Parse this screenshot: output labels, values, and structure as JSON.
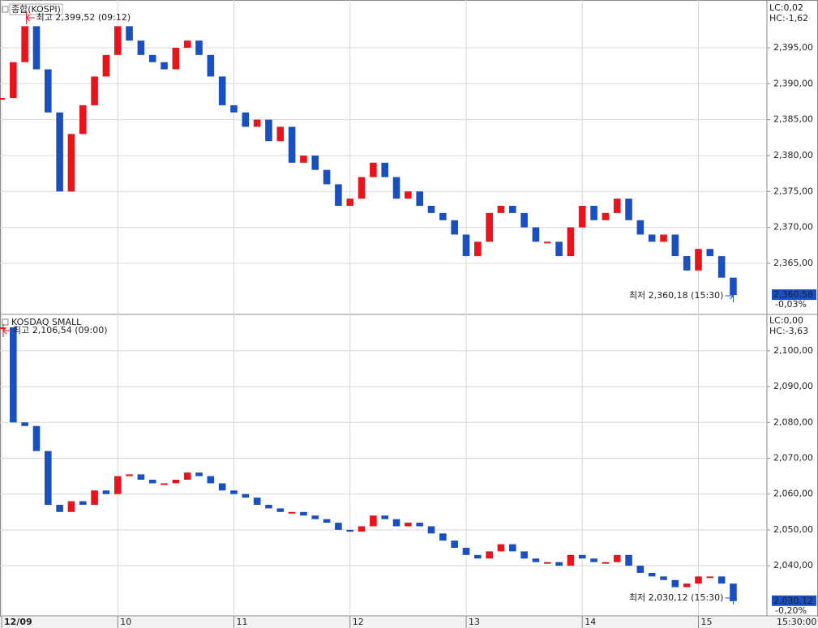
{
  "chart_data": [
    {
      "type": "stock",
      "title": "종합(KOSPI)",
      "high_label": "최고 2,399,52 (09:12)",
      "low_label": "최저 2,360,18 (15:30)",
      "lc_label": "LC:0,02",
      "hc_label": "HC:-1,62",
      "last_label": "2,360,58",
      "change_label": "-0,03%",
      "up_color": "#e8141c",
      "down_color": "#1a4fbf",
      "xlim": [
        0,
        6.59
      ],
      "xticks": [
        0,
        1,
        2,
        3,
        4,
        5,
        6
      ],
      "ylim": [
        2358.0,
        2401.2
      ],
      "yticks": [
        {
          "value": 2365,
          "label": "2,365,00"
        },
        {
          "value": 2370,
          "label": "2,370,00"
        },
        {
          "value": 2375,
          "label": "2,375,00"
        },
        {
          "value": 2380,
          "label": "2,380,00"
        },
        {
          "value": 2385,
          "label": "2,385,00"
        },
        {
          "value": 2390,
          "label": "2,390,00"
        },
        {
          "value": 2395,
          "label": "2,395,00"
        }
      ],
      "grid": true,
      "x": [
        0,
        0.1,
        0.2,
        0.3,
        0.4,
        0.5,
        0.6,
        0.7,
        0.8,
        0.9,
        1,
        1.1,
        1.2,
        1.3,
        1.4,
        1.5,
        1.6,
        1.7,
        1.8,
        1.9,
        2,
        2.1,
        2.2,
        2.3,
        2.4,
        2.5,
        2.6,
        2.7,
        2.8,
        2.9,
        3,
        3.1,
        3.2,
        3.3,
        3.4,
        3.5,
        3.6,
        3.7,
        3.8,
        3.9,
        4,
        4.1,
        4.2,
        4.3,
        4.4,
        4.5,
        4.6,
        4.7,
        4.8,
        4.9,
        5,
        5.1,
        5.2,
        5.3,
        5.4,
        5.5,
        5.6,
        5.7,
        5.8,
        5.9,
        6,
        6.1,
        6.2,
        6.3
      ],
      "values": [
        2388,
        2393,
        2398,
        2392,
        2386,
        2375,
        2383,
        2387,
        2391,
        2394,
        2398,
        2396,
        2394,
        2393,
        2392,
        2395,
        2396,
        2394,
        2391,
        2387,
        2386,
        2384,
        2385,
        2382,
        2384,
        2379,
        2380,
        2378,
        2376,
        2373,
        2374,
        2377,
        2379,
        2377,
        2374,
        2375,
        2373,
        2372,
        2371,
        2369,
        2366,
        2368,
        2372,
        2373,
        2372,
        2370,
        2368,
        2368,
        2366,
        2370,
        2373,
        2371,
        2372,
        2374,
        2371,
        2369,
        2368,
        2369,
        2366,
        2364,
        2367,
        2366,
        2363,
        2360.58
      ]
    },
    {
      "type": "stock",
      "title": "KOSDAQ SMALL",
      "high_label": "최고 2,106,54 (09:00)",
      "low_label": "최저 2,030,12 (15:30)",
      "lc_label": "LC:0,00",
      "hc_label": "HC:-3,63",
      "last_label": "2,030,12",
      "change_label": "-0,20%",
      "up_color": "#e8141c",
      "down_color": "#1a4fbf",
      "xlim": [
        0,
        6.59
      ],
      "xticks": [
        {
          "value": 0,
          "label": "12/09"
        },
        {
          "value": 1,
          "label": "10"
        },
        {
          "value": 2,
          "label": "11"
        },
        {
          "value": 3,
          "label": "12"
        },
        {
          "value": 4,
          "label": "13"
        },
        {
          "value": 5,
          "label": "14"
        },
        {
          "value": 6,
          "label": "15"
        }
      ],
      "x_end_label": "15:30:00",
      "ylim": [
        2026.0,
        2109.7
      ],
      "yticks": [
        {
          "value": 2040,
          "label": "2,040,00"
        },
        {
          "value": 2050,
          "label": "2,050,00"
        },
        {
          "value": 2060,
          "label": "2,060,00"
        },
        {
          "value": 2070,
          "label": "2,070,00"
        },
        {
          "value": 2080,
          "label": "2,080,00"
        },
        {
          "value": 2090,
          "label": "2,090,00"
        },
        {
          "value": 2100,
          "label": "2,100,00"
        }
      ],
      "grid": true,
      "x": [
        0,
        0.1,
        0.2,
        0.3,
        0.4,
        0.5,
        0.6,
        0.7,
        0.8,
        0.9,
        1,
        1.1,
        1.2,
        1.3,
        1.4,
        1.5,
        1.6,
        1.7,
        1.8,
        1.9,
        2,
        2.1,
        2.2,
        2.3,
        2.4,
        2.5,
        2.6,
        2.7,
        2.8,
        2.9,
        3,
        3.1,
        3.2,
        3.3,
        3.4,
        3.5,
        3.6,
        3.7,
        3.8,
        3.9,
        4,
        4.1,
        4.2,
        4.3,
        4.4,
        4.5,
        4.6,
        4.7,
        4.8,
        4.9,
        5,
        5.1,
        5.2,
        5.3,
        5.4,
        5.5,
        5.6,
        5.7,
        5.8,
        5.9,
        6,
        6.1,
        6.2,
        6.3
      ],
      "values": [
        2106.54,
        2080,
        2079,
        2072,
        2057,
        2055,
        2058,
        2057,
        2061,
        2060,
        2065,
        2065.5,
        2064,
        2063,
        2063,
        2064,
        2066,
        2065,
        2063,
        2061,
        2060,
        2059,
        2057,
        2056,
        2055,
        2055,
        2054,
        2053,
        2052,
        2050,
        2049.5,
        2051,
        2054,
        2053,
        2051,
        2052,
        2051,
        2049,
        2047,
        2045,
        2043,
        2042,
        2044,
        2046,
        2044,
        2042,
        2041,
        2041,
        2040,
        2043,
        2042,
        2041,
        2041,
        2043,
        2040,
        2038,
        2037,
        2036,
        2034,
        2035,
        2037,
        2037,
        2035,
        2030.12
      ]
    }
  ]
}
